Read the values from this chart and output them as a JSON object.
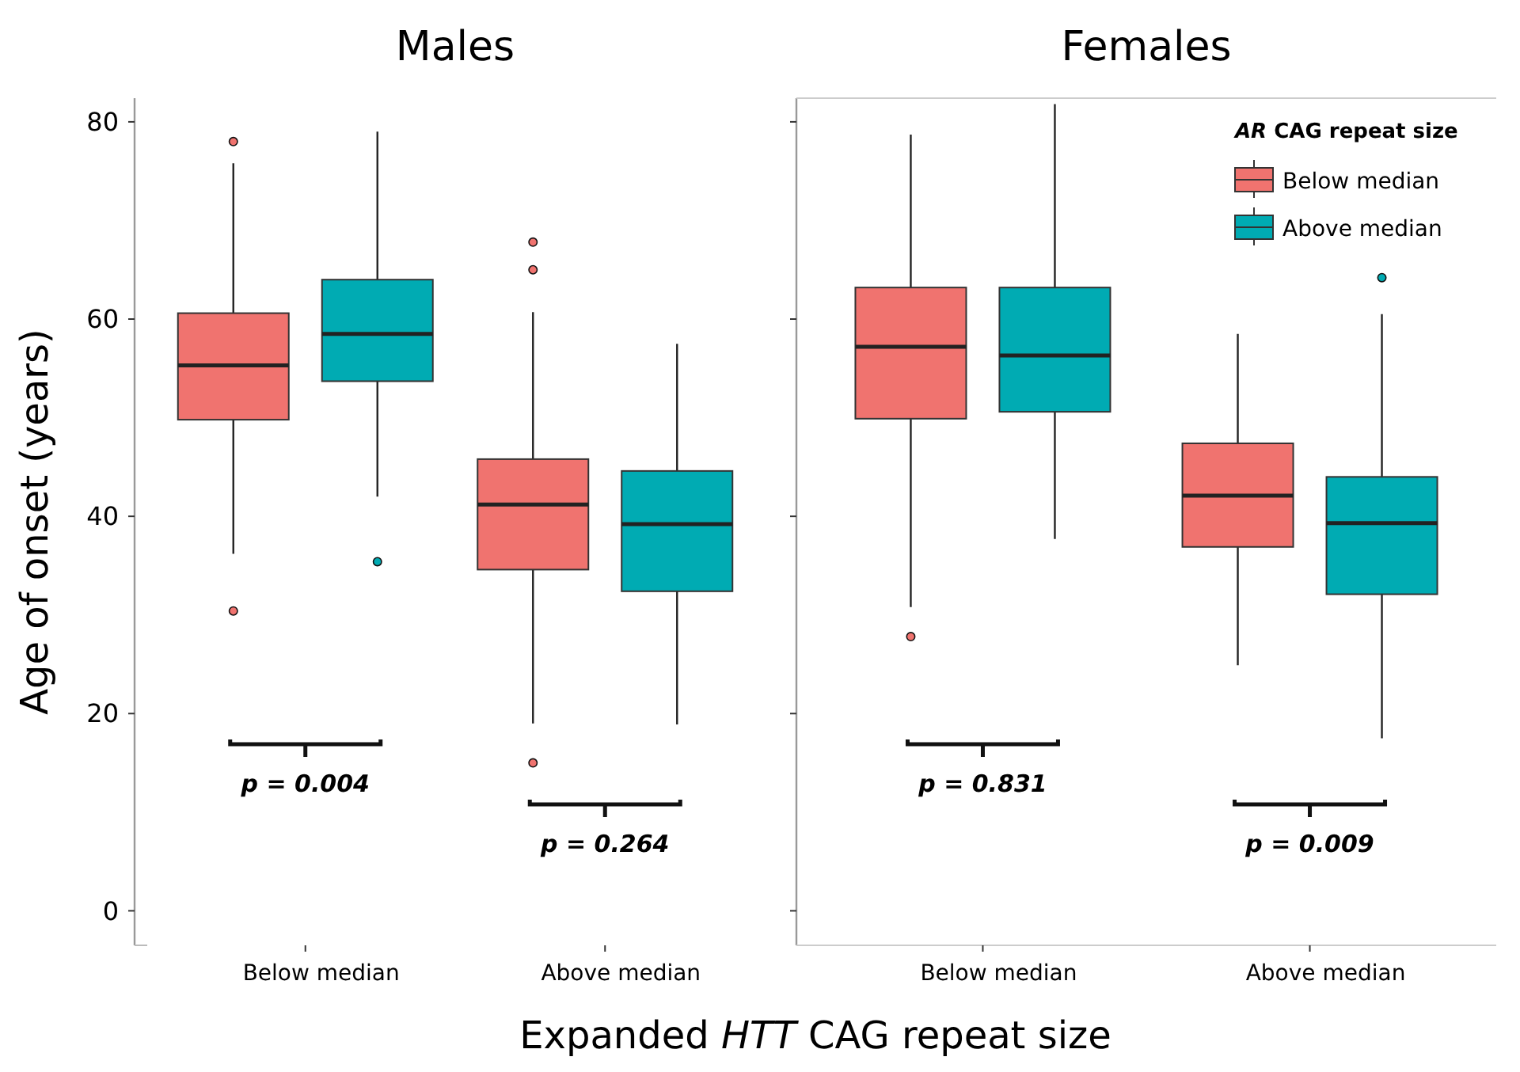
{
  "chart_data": [
    {
      "type": "box",
      "title": "Males",
      "xlabel": "Expanded HTT CAG repeat size",
      "ylabel": "Age of onset (years)",
      "categories": [
        "Below median",
        "Above median"
      ],
      "ylim": [
        -3.5,
        82.4
      ],
      "yticks": [
        0,
        20,
        40,
        60,
        80
      ],
      "grid": false,
      "legend": false,
      "series": [
        {
          "color": "#f0736f",
          "boxes": [
            {
              "low": 36.2,
              "q1": 49.8,
              "median": 55.3,
              "q3": 60.6,
              "high": 75.8,
              "outliers": [
                78,
                30.4
              ]
            },
            {
              "low": 19,
              "q1": 34.6,
              "median": 41.2,
              "q3": 45.8,
              "high": 60.7,
              "outliers": [
                67.8,
                65,
                15
              ]
            }
          ]
        },
        {
          "color": "#00abb3",
          "boxes": [
            {
              "low": 42,
              "q1": 53.7,
              "median": 58.5,
              "q3": 64,
              "high": 79,
              "outliers": [
                35.4
              ]
            },
            {
              "low": 18.9,
              "q1": 32.4,
              "median": 39.2,
              "q3": 44.6,
              "high": 57.5
            }
          ]
        }
      ],
      "annotations": [
        "p = 0.004",
        "p = 0.264"
      ]
    },
    {
      "type": "box",
      "title": "Females",
      "legend_title": "AR CAG repeat size",
      "categories": [
        "Below median",
        "Above median"
      ],
      "ylim": [
        -3.5,
        82.4
      ],
      "yticks": [
        {
          "value": 0,
          "label": null
        },
        {
          "value": 20,
          "label": null
        },
        {
          "value": 40,
          "label": null
        },
        {
          "value": 60,
          "label": null
        },
        {
          "value": 80,
          "label": null
        }
      ],
      "tick_labels": "x",
      "grid": false,
      "legend": "top right",
      "series": [
        {
          "name": "Below median",
          "color": "#f0736f",
          "boxes": [
            {
              "low": 30.8,
              "q1": 49.9,
              "median": 57.2,
              "q3": 63.2,
              "high": 78.7,
              "outliers": [
                27.8
              ]
            },
            {
              "low": 24.9,
              "q1": 36.9,
              "median": 42.1,
              "q3": 47.4,
              "high": 58.5
            }
          ]
        },
        {
          "name": "Above median",
          "color": "#00abb3",
          "boxes": [
            {
              "low": 37.7,
              "q1": 50.6,
              "median": 56.3,
              "q3": 63.2,
              "high": 81.8
            },
            {
              "low": 17.5,
              "q1": 32.1,
              "median": 39.3,
              "q3": 44,
              "high": 60.5,
              "outliers": [
                64.2
              ]
            }
          ]
        }
      ],
      "annotations": [
        "p = 0.831",
        "p = 0.009"
      ]
    }
  ]
}
